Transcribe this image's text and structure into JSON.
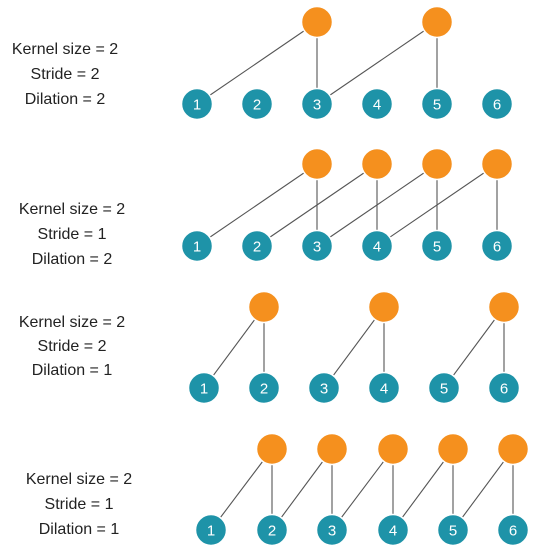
{
  "colors": {
    "input_node": "#1e93a8",
    "output_node": "#f5901e",
    "edge": "#555555",
    "text": "#222222"
  },
  "panels": [
    {
      "kernel_label": "Kernel size = 2",
      "stride_label": "Stride = 2",
      "dilation_label": "Dilation = 2",
      "kernel_size": 2,
      "stride": 2,
      "dilation": 2,
      "inputs": [
        "1",
        "2",
        "3",
        "4",
        "5",
        "6"
      ],
      "outputs": [
        [
          1,
          3
        ],
        [
          3,
          5
        ]
      ]
    },
    {
      "kernel_label": "Kernel size = 2",
      "stride_label": "Stride = 1",
      "dilation_label": "Dilation = 2",
      "kernel_size": 2,
      "stride": 1,
      "dilation": 2,
      "inputs": [
        "1",
        "2",
        "3",
        "4",
        "5",
        "6"
      ],
      "outputs": [
        [
          1,
          3
        ],
        [
          2,
          4
        ],
        [
          3,
          5
        ],
        [
          4,
          6
        ]
      ]
    },
    {
      "kernel_label": "Kernel size = 2",
      "stride_label": "Stride = 2",
      "dilation_label": "Dilation = 1",
      "kernel_size": 2,
      "stride": 2,
      "dilation": 1,
      "inputs": [
        "1",
        "2",
        "3",
        "4",
        "5",
        "6"
      ],
      "outputs": [
        [
          1,
          2
        ],
        [
          3,
          4
        ],
        [
          5,
          6
        ]
      ]
    },
    {
      "kernel_label": "Kernel size = 2",
      "stride_label": "Stride = 1",
      "dilation_label": "Dilation = 1",
      "kernel_size": 2,
      "stride": 1,
      "dilation": 1,
      "inputs": [
        "1",
        "2",
        "3",
        "4",
        "5",
        "6"
      ],
      "outputs": [
        [
          1,
          2
        ],
        [
          2,
          3
        ],
        [
          3,
          4
        ],
        [
          4,
          5
        ],
        [
          5,
          6
        ]
      ]
    }
  ]
}
